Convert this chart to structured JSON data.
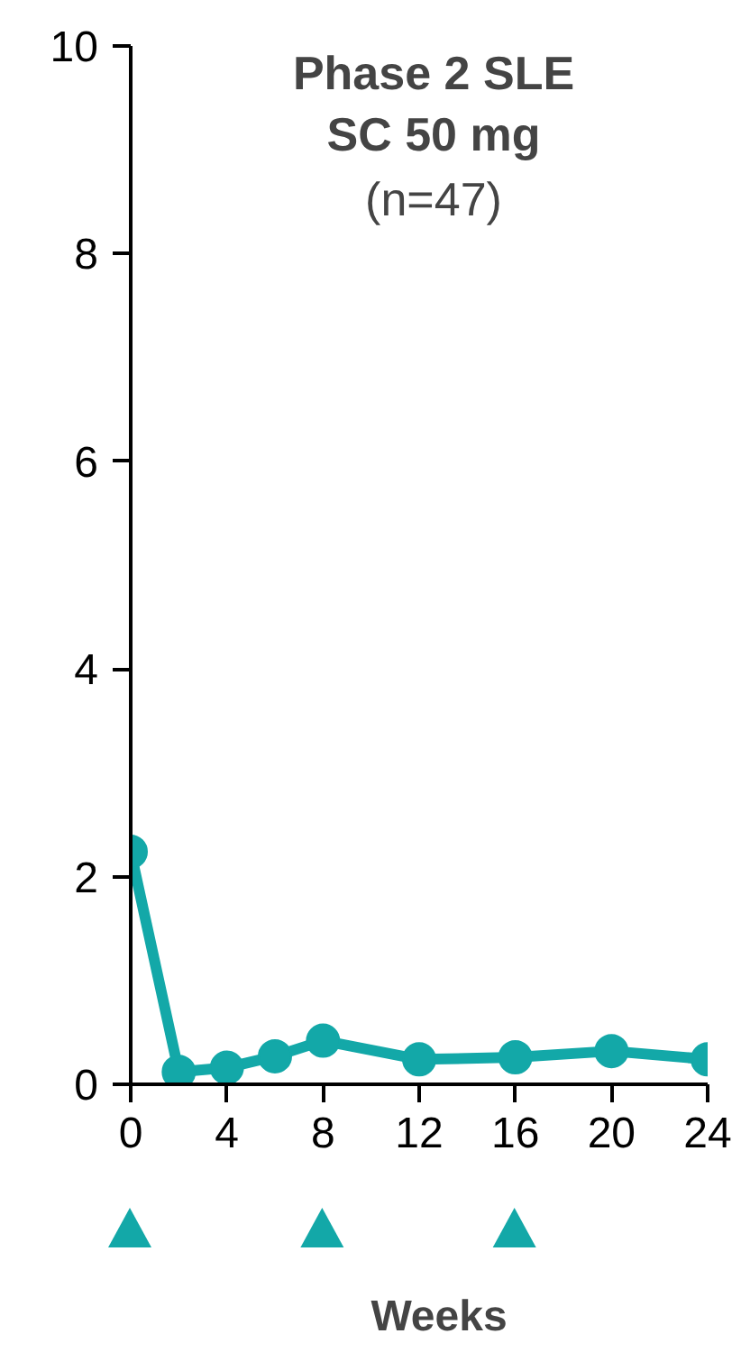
{
  "chart_data": {
    "type": "line",
    "title": "Phase 2 SLE\nSC 50 mg",
    "subtitle": "(n=47)",
    "xlabel": "Weeks",
    "x": [
      0,
      2,
      4,
      6,
      8,
      12,
      16,
      20,
      24
    ],
    "series": [
      {
        "color": "#13a8a8",
        "values": [
          2.24,
          0.12,
          0.16,
          0.27,
          0.42,
          0.24,
          0.26,
          0.32,
          0.24
        ]
      }
    ],
    "xlim": [
      0,
      24
    ],
    "ylim": [
      0,
      10
    ],
    "xticks": [
      0,
      4,
      8,
      12,
      16,
      20,
      24
    ],
    "yticks": [
      0,
      2,
      4,
      6,
      8,
      10
    ],
    "grid": false,
    "marker": "circle",
    "line_style": "solid"
  }
}
